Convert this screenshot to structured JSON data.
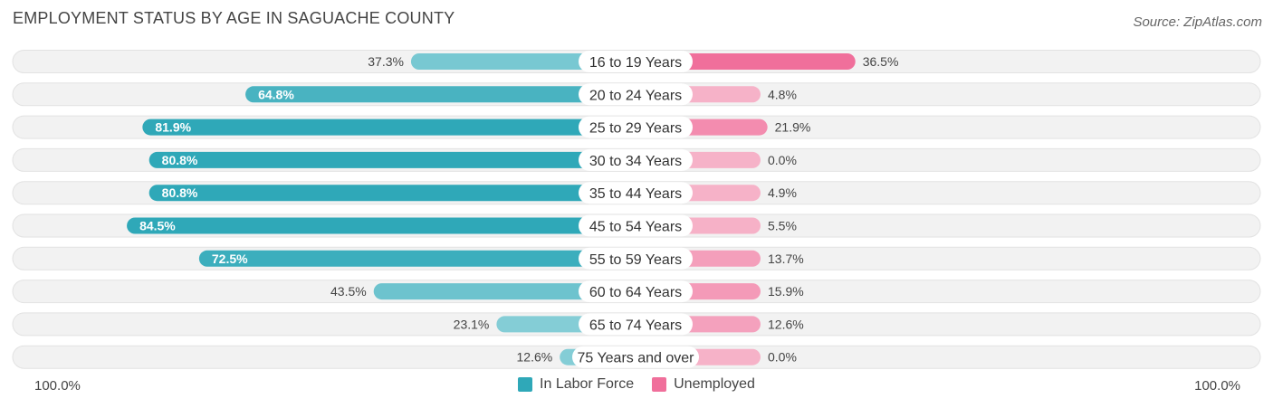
{
  "title": "EMPLOYMENT STATUS BY AGE IN SAGUACHE COUNTY",
  "source": "Source: ZipAtlas.com",
  "axis": {
    "left_label": "100.0%",
    "right_label": "100.0%"
  },
  "legend": [
    {
      "label": "In Labor Force",
      "color": "#2fa8b8"
    },
    {
      "label": "Unemployed",
      "color": "#f06f9b"
    }
  ],
  "chart_data": {
    "type": "bar",
    "orientation": "diverging-horizontal",
    "title": "EMPLOYMENT STATUS BY AGE IN SAGUACHE COUNTY",
    "categories": [
      "16 to 19 Years",
      "20 to 24 Years",
      "25 to 29 Years",
      "30 to 34 Years",
      "35 to 44 Years",
      "45 to 54 Years",
      "55 to 59 Years",
      "60 to 64 Years",
      "65 to 74 Years",
      "75 Years and over"
    ],
    "series": [
      {
        "name": "In Labor Force",
        "values": [
          37.3,
          64.8,
          81.9,
          80.8,
          80.8,
          84.5,
          72.5,
          43.5,
          23.1,
          12.6
        ],
        "labels": [
          "37.3%",
          "64.8%",
          "81.9%",
          "80.8%",
          "80.8%",
          "84.5%",
          "72.5%",
          "43.5%",
          "23.1%",
          "12.6%"
        ]
      },
      {
        "name": "Unemployed",
        "values": [
          36.5,
          4.8,
          21.9,
          0.0,
          4.9,
          5.5,
          13.7,
          15.9,
          12.6,
          0.0
        ],
        "labels": [
          "36.5%",
          "4.8%",
          "21.9%",
          "0.0%",
          "4.9%",
          "5.5%",
          "13.7%",
          "15.9%",
          "12.6%",
          "0.0%"
        ]
      }
    ],
    "xlim": [
      -100,
      100
    ],
    "xlabel_left": "100.0%",
    "xlabel_right": "100.0%",
    "legend_position": "bottom-center"
  }
}
